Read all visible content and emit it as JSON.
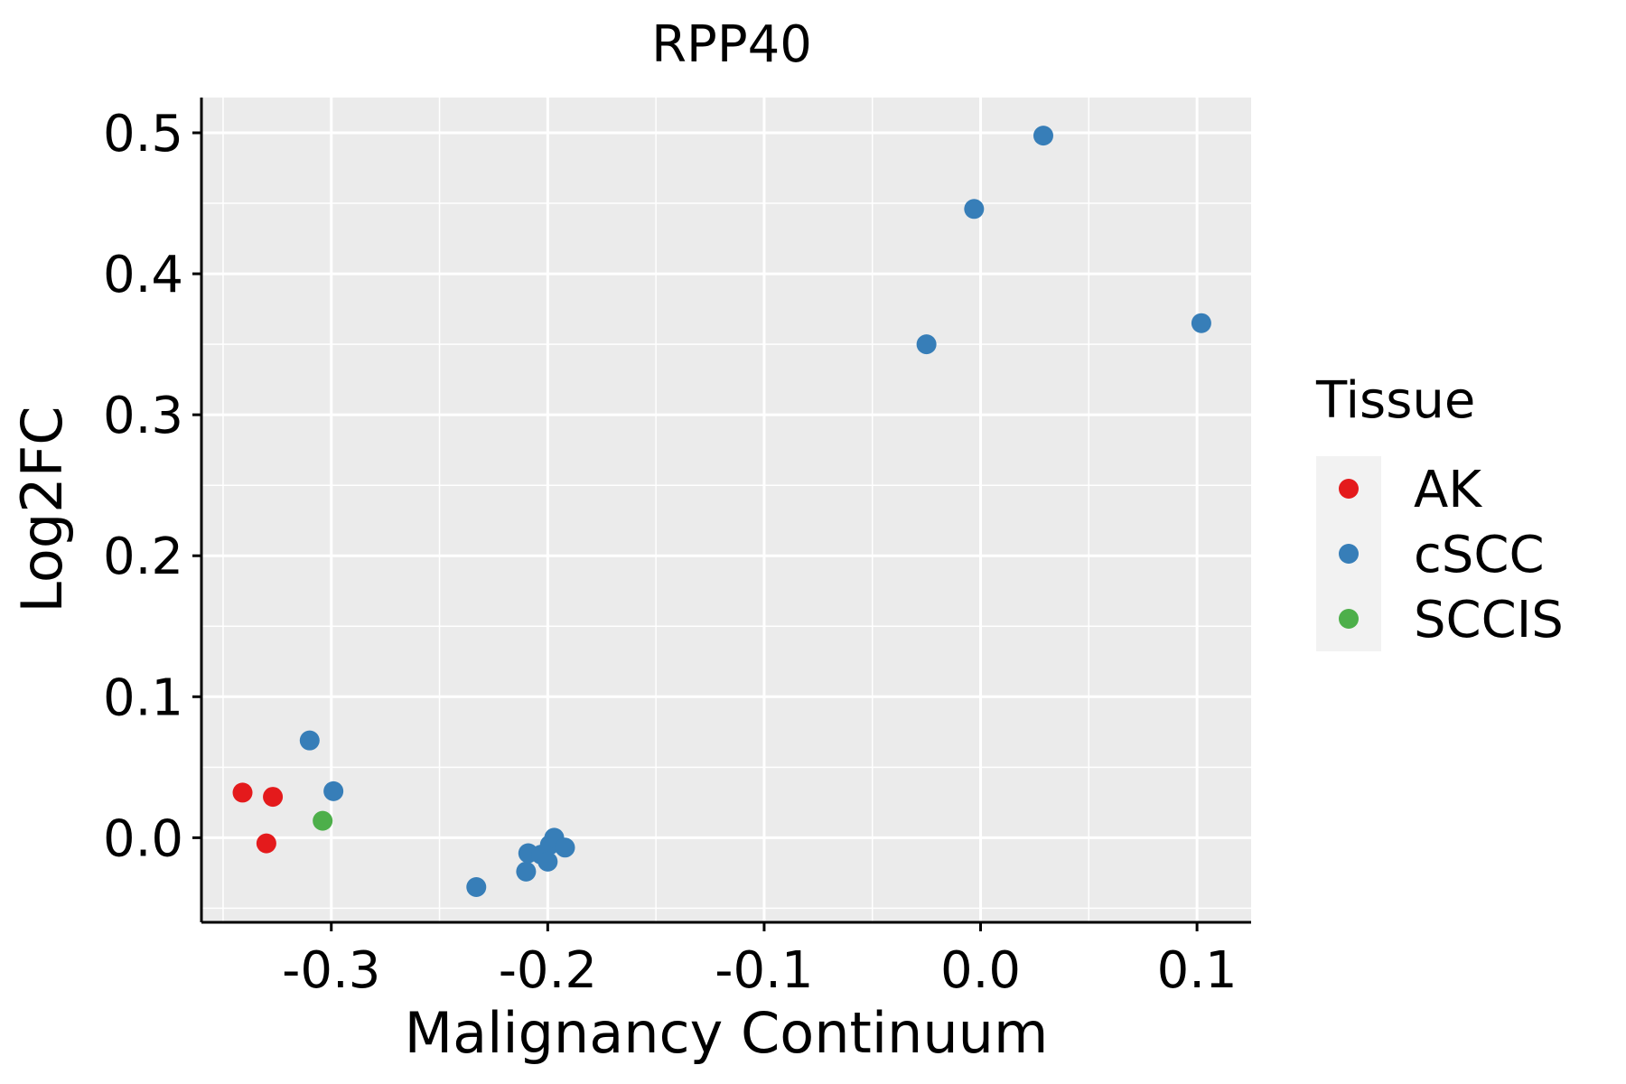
{
  "chart_data": {
    "type": "scatter",
    "title": "RPP40",
    "xlabel": "Malignancy Continuum",
    "ylabel": "Log2FC",
    "xlim": [
      -0.36,
      0.125
    ],
    "ylim": [
      -0.06,
      0.525
    ],
    "x_ticks": [
      -0.3,
      -0.2,
      -0.1,
      0.0,
      0.1
    ],
    "x_tick_labels": [
      "-0.3",
      "-0.2",
      "-0.1",
      "0.0",
      "0.1"
    ],
    "y_ticks": [
      0.0,
      0.1,
      0.2,
      0.3,
      0.4,
      0.5
    ],
    "y_tick_labels": [
      "0.0",
      "0.1",
      "0.2",
      "0.3",
      "0.4",
      "0.5"
    ],
    "grid": true,
    "legend": {
      "title": "Tissue",
      "position": "right",
      "entries": [
        {
          "label": "AK",
          "color": "#E41A1C"
        },
        {
          "label": "cSCC",
          "color": "#377EB8"
        },
        {
          "label": "SCCIS",
          "color": "#4DAF4A"
        }
      ]
    },
    "series": [
      {
        "name": "AK",
        "color": "#E41A1C",
        "points": [
          {
            "x": -0.341,
            "y": 0.032
          },
          {
            "x": -0.327,
            "y": 0.029
          },
          {
            "x": -0.33,
            "y": -0.004
          }
        ]
      },
      {
        "name": "cSCC",
        "color": "#377EB8",
        "points": [
          {
            "x": -0.31,
            "y": 0.069
          },
          {
            "x": -0.299,
            "y": 0.033
          },
          {
            "x": -0.233,
            "y": -0.035
          },
          {
            "x": -0.21,
            "y": -0.024
          },
          {
            "x": -0.209,
            "y": -0.011
          },
          {
            "x": -0.203,
            "y": -0.012
          },
          {
            "x": -0.199,
            "y": -0.005
          },
          {
            "x": -0.197,
            "y": 0.0
          },
          {
            "x": -0.2,
            "y": -0.017
          },
          {
            "x": -0.192,
            "y": -0.007
          },
          {
            "x": -0.025,
            "y": 0.35
          },
          {
            "x": -0.003,
            "y": 0.446
          },
          {
            "x": 0.029,
            "y": 0.498
          },
          {
            "x": 0.102,
            "y": 0.365
          }
        ]
      },
      {
        "name": "SCCIS",
        "color": "#4DAF4A",
        "points": [
          {
            "x": -0.304,
            "y": 0.012
          }
        ]
      }
    ]
  }
}
